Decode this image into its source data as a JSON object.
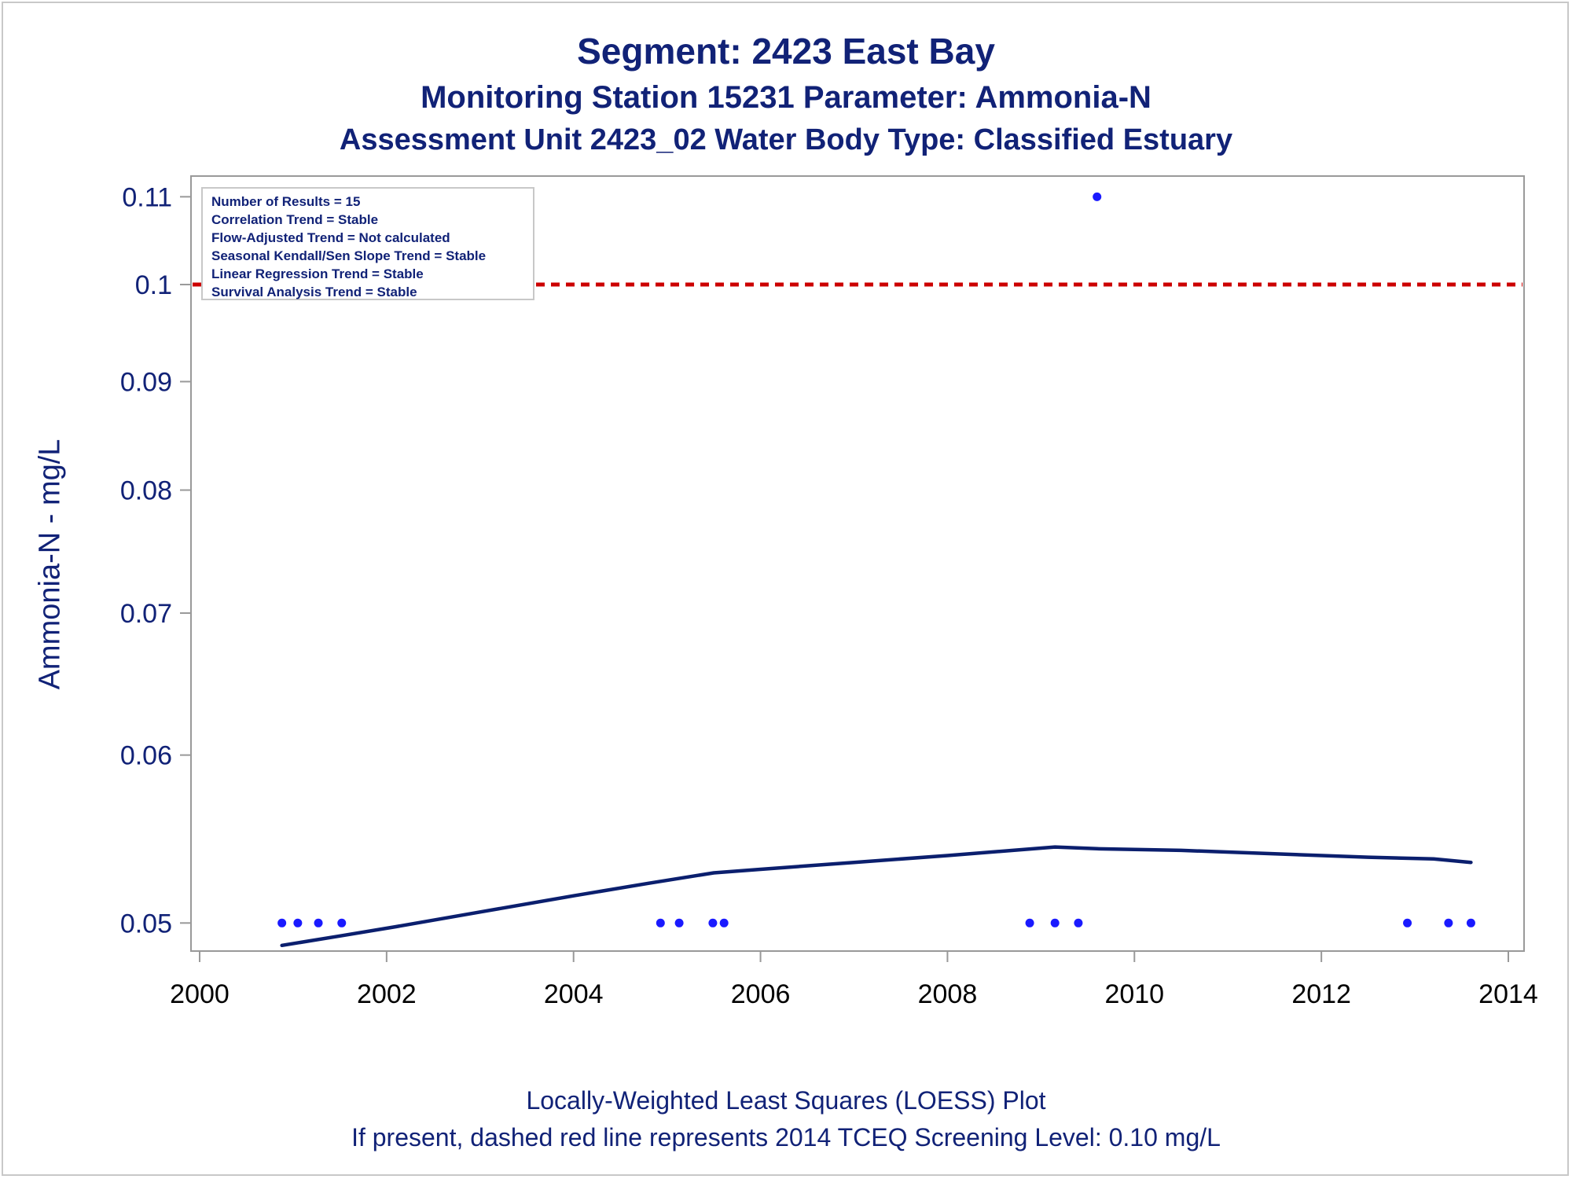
{
  "titles": {
    "line1": "Segment: 2423  East Bay",
    "line2": "Monitoring Station 15231 Parameter: Ammonia-N",
    "line3": "Assessment Unit 2423_02   Water Body Type: Classified Estuary"
  },
  "footnotes": {
    "line1": "Locally-Weighted Least Squares (LOESS) Plot",
    "line2": "If present, dashed red line represents 2014 TCEQ Screening Level: 0.10 mg/L"
  },
  "inset": {
    "lines": [
      "Number of Results = 15",
      "Correlation Trend = Stable",
      "Flow-Adjusted Trend = Not calculated",
      "Seasonal Kendall/Sen Slope Trend = Stable",
      "Linear Regression Trend = Stable",
      "Survival Analysis Trend = Stable"
    ]
  },
  "colors": {
    "text": "#112277",
    "points": "#1a1aff",
    "loess": "#0b1f6e",
    "reference": "#cc0000",
    "axis": "#999999"
  },
  "chart_data": {
    "type": "scatter",
    "ylabel": "Ammonia-N - mg/L",
    "xlabel": "",
    "y_scale": "log",
    "xlim": [
      2000,
      2014
    ],
    "ylim": [
      0.0485,
      0.1125
    ],
    "x_ticks": [
      "2000",
      "2002",
      "2004",
      "2006",
      "2008",
      "2010",
      "2012",
      "2014"
    ],
    "y_ticks": [
      "0.05",
      "0.06",
      "0.07",
      "0.08",
      "0.09",
      "0.1",
      "0.11"
    ],
    "reference_line": {
      "value": 0.1,
      "style": "dashed",
      "color": "#cc0000"
    },
    "series": [
      {
        "type": "scatter",
        "x": [
          2000.88,
          2001.05,
          2001.27,
          2001.52,
          2004.93,
          2005.13,
          2005.49,
          2005.61,
          2008.88,
          2009.15,
          2009.4,
          2009.6,
          2012.92,
          2013.36,
          2013.6
        ],
        "y": [
          0.05,
          0.05,
          0.05,
          0.05,
          0.05,
          0.05,
          0.05,
          0.05,
          0.05,
          0.05,
          0.05,
          0.11,
          0.05,
          0.05,
          0.05
        ]
      },
      {
        "type": "line",
        "x": [
          2000.88,
          2001.5,
          2002.1,
          2003.0,
          2004.0,
          2004.8,
          2005.5,
          2006.0,
          2007.0,
          2008.0,
          2008.7,
          2009.15,
          2009.6,
          2010.5,
          2011.5,
          2012.5,
          2013.2,
          2013.6
        ],
        "y": [
          0.0488,
          0.0493,
          0.0498,
          0.0506,
          0.0515,
          0.0522,
          0.0528,
          0.053,
          0.0534,
          0.0538,
          0.0541,
          0.0543,
          0.0542,
          0.0541,
          0.0539,
          0.0537,
          0.0536,
          0.0534
        ]
      }
    ]
  }
}
